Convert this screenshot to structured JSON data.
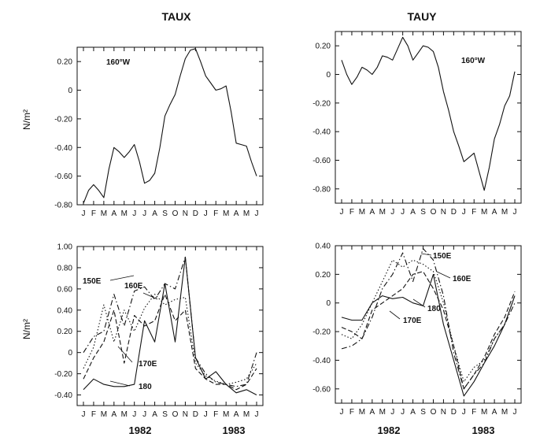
{
  "figure": {
    "titles": [
      "TAUX",
      "TAUY"
    ],
    "ylabel": "N/m²",
    "years": [
      "1982",
      "1983"
    ]
  },
  "chart_data": [
    {
      "type": "line",
      "title": "TAUX",
      "ylabel": "N/m²",
      "annotation": "160°W",
      "x": [
        "J",
        "F",
        "M",
        "A",
        "M",
        "J",
        "J",
        "A",
        "S",
        "O",
        "N",
        "D",
        "J",
        "F",
        "M",
        "A",
        "M",
        "J"
      ],
      "xlim": [
        0,
        17
      ],
      "ylim": [
        -0.8,
        0.3
      ],
      "yticks": [
        0.2,
        0,
        -0.2,
        -0.4,
        -0.6,
        -0.8
      ],
      "ytick_labels": [
        "0.20",
        "0",
        "-0.20",
        "-0.40",
        "-0.60",
        "-0.80"
      ],
      "series": [
        {
          "style": "solid",
          "x": [
            0,
            0.5,
            1,
            1.5,
            2,
            2.5,
            3,
            3.5,
            4,
            4.5,
            5,
            5.5,
            6,
            6.5,
            7,
            7.5,
            8,
            8.5,
            9,
            9.5,
            10,
            10.5,
            11,
            11.5,
            12,
            12.5,
            13,
            13.5,
            14,
            14.5,
            15,
            15.5,
            16,
            16.5,
            17
          ],
          "values": [
            -0.79,
            -0.7,
            -0.66,
            -0.7,
            -0.75,
            -0.55,
            -0.4,
            -0.43,
            -0.47,
            -0.43,
            -0.38,
            -0.5,
            -0.65,
            -0.63,
            -0.58,
            -0.4,
            -0.18,
            -0.1,
            -0.03,
            0.1,
            0.22,
            0.28,
            0.29,
            0.2,
            0.1,
            0.05,
            0.0,
            0.01,
            0.03,
            -0.15,
            -0.37,
            -0.38,
            -0.39,
            -0.5,
            -0.6
          ]
        }
      ]
    },
    {
      "type": "line",
      "title": "TAUY",
      "annotation": "160°W",
      "x": [
        "J",
        "F",
        "M",
        "A",
        "M",
        "J",
        "J",
        "A",
        "S",
        "O",
        "N",
        "D",
        "J",
        "F",
        "M",
        "A",
        "M",
        "J"
      ],
      "xlim": [
        0,
        17
      ],
      "ylim": [
        -0.9,
        0.3
      ],
      "yticks": [
        0.2,
        0,
        -0.2,
        -0.4,
        -0.6,
        -0.8
      ],
      "ytick_labels": [
        "0.20",
        "0",
        "-0.20",
        "-0.40",
        "-0.60",
        "-0.80"
      ],
      "series": [
        {
          "style": "solid",
          "x": [
            0,
            0.5,
            1,
            1.5,
            2,
            2.5,
            3,
            3.5,
            4,
            4.5,
            5,
            5.5,
            6,
            6.5,
            7,
            7.5,
            8,
            8.5,
            9,
            9.5,
            10,
            10.5,
            11,
            11.5,
            12,
            12.5,
            13,
            13.5,
            14,
            14.5,
            15,
            15.5,
            16,
            16.5,
            17
          ],
          "values": [
            0.1,
            0.0,
            -0.07,
            -0.02,
            0.05,
            0.03,
            0.0,
            0.05,
            0.13,
            0.12,
            0.1,
            0.18,
            0.26,
            0.2,
            0.1,
            0.15,
            0.2,
            0.19,
            0.16,
            0.05,
            -0.12,
            -0.25,
            -0.4,
            -0.5,
            -0.61,
            -0.58,
            -0.55,
            -0.68,
            -0.81,
            -0.65,
            -0.45,
            -0.35,
            -0.22,
            -0.15,
            0.02
          ]
        }
      ]
    },
    {
      "type": "line",
      "ylabel": "N/m²",
      "x": [
        "J",
        "F",
        "M",
        "A",
        "M",
        "J",
        "J",
        "A",
        "S",
        "O",
        "N",
        "D",
        "J",
        "F",
        "M",
        "A",
        "M",
        "J"
      ],
      "xlim": [
        0,
        17
      ],
      "ylim": [
        -0.5,
        1.0
      ],
      "yticks": [
        1.0,
        0.8,
        0.6,
        0.4,
        0.2,
        0,
        -0.2,
        -0.4
      ],
      "ytick_labels": [
        "1.00",
        "0.80",
        "0.60",
        "0.40",
        "0.20",
        "0",
        "-0.20",
        "-0.40"
      ],
      "series": [
        {
          "name": "150E",
          "style": "dashdot",
          "x": [
            0,
            1,
            2,
            3,
            4,
            5,
            6,
            7,
            8,
            9,
            10,
            11,
            12,
            13,
            14,
            15,
            16,
            17
          ],
          "values": [
            0.0,
            0.15,
            0.2,
            0.55,
            0.25,
            0.58,
            0.62,
            0.5,
            0.65,
            0.6,
            0.9,
            -0.05,
            -0.2,
            -0.28,
            -0.3,
            -0.32,
            -0.3,
            0.0
          ]
        },
        {
          "name": "160E",
          "style": "dotted",
          "x": [
            0,
            1,
            2,
            3,
            4,
            5,
            6,
            7,
            8,
            9,
            10,
            11,
            12,
            13,
            14,
            15,
            16,
            17
          ],
          "values": [
            -0.15,
            0.05,
            0.45,
            0.1,
            0.4,
            0.2,
            0.42,
            0.55,
            0.45,
            0.5,
            0.52,
            -0.1,
            -0.22,
            -0.27,
            -0.3,
            -0.28,
            -0.25,
            -0.1
          ]
        },
        {
          "name": "170E",
          "style": "dashed",
          "x": [
            0,
            1,
            2,
            3,
            4,
            5,
            6,
            7,
            8,
            9,
            10,
            11,
            12,
            13,
            14,
            15,
            16,
            17
          ],
          "values": [
            -0.25,
            -0.05,
            0.1,
            0.4,
            -0.1,
            0.35,
            0.25,
            0.3,
            0.55,
            0.3,
            0.4,
            -0.15,
            -0.25,
            -0.3,
            -0.3,
            -0.35,
            -0.3,
            -0.15
          ]
        },
        {
          "name": "180",
          "style": "solid",
          "x": [
            0,
            1,
            2,
            3,
            4,
            5,
            6,
            7,
            8,
            9,
            10,
            11,
            12,
            13,
            14,
            15,
            16,
            17
          ],
          "values": [
            -0.35,
            -0.25,
            -0.3,
            -0.32,
            -0.32,
            -0.3,
            0.3,
            0.1,
            0.65,
            0.1,
            0.9,
            -0.05,
            -0.25,
            -0.18,
            -0.3,
            -0.38,
            -0.35,
            -0.4
          ]
        }
      ]
    },
    {
      "type": "line",
      "x": [
        "J",
        "F",
        "M",
        "A",
        "M",
        "J",
        "J",
        "A",
        "S",
        "O",
        "N",
        "D",
        "J",
        "F",
        "M",
        "A",
        "M",
        "J"
      ],
      "xlim": [
        0,
        17
      ],
      "ylim": [
        -0.7,
        0.4
      ],
      "yticks": [
        0.4,
        0.2,
        0,
        -0.2,
        -0.4,
        -0.6
      ],
      "ytick_labels": [
        "0.40",
        "0.20",
        "0",
        "-0.20",
        "-0.40",
        "-0.60"
      ],
      "series": [
        {
          "name": "150E",
          "style": "dashdot",
          "x": [
            0,
            1,
            2,
            3,
            4,
            5,
            6,
            7,
            8,
            9,
            10,
            11,
            12,
            13,
            14,
            15,
            16,
            17
          ],
          "values": [
            -0.32,
            -0.3,
            -0.25,
            -0.1,
            0.1,
            0.2,
            0.35,
            0.15,
            0.38,
            0.3,
            0.05,
            -0.35,
            -0.6,
            -0.5,
            -0.42,
            -0.25,
            -0.15,
            0.0
          ]
        },
        {
          "name": "160E",
          "style": "dotted",
          "x": [
            0,
            1,
            2,
            3,
            4,
            5,
            6,
            7,
            8,
            9,
            10,
            11,
            12,
            13,
            14,
            15,
            16,
            17
          ],
          "values": [
            -0.22,
            -0.25,
            -0.15,
            0.0,
            0.15,
            0.3,
            0.25,
            0.3,
            0.27,
            0.22,
            0.0,
            -0.3,
            -0.55,
            -0.45,
            -0.4,
            -0.25,
            -0.15,
            0.05
          ]
        },
        {
          "name": "170E",
          "style": "dashed",
          "x": [
            0,
            1,
            2,
            3,
            4,
            5,
            6,
            7,
            8,
            9,
            10,
            11,
            12,
            13,
            14,
            15,
            16,
            17
          ],
          "values": [
            -0.17,
            -0.2,
            -0.25,
            -0.05,
            0.0,
            0.05,
            0.1,
            0.2,
            0.22,
            0.1,
            -0.05,
            -0.3,
            -0.6,
            -0.5,
            -0.38,
            -0.22,
            -0.1,
            0.08
          ]
        },
        {
          "name": "180",
          "style": "solid",
          "x": [
            0,
            1,
            2,
            3,
            4,
            5,
            6,
            7,
            8,
            9,
            10,
            11,
            12,
            13,
            14,
            15,
            16,
            17
          ],
          "values": [
            -0.1,
            -0.12,
            -0.12,
            0.0,
            0.05,
            0.03,
            0.04,
            0.0,
            -0.02,
            0.2,
            -0.15,
            -0.4,
            -0.65,
            -0.55,
            -0.42,
            -0.3,
            -0.15,
            0.05
          ]
        }
      ]
    }
  ]
}
